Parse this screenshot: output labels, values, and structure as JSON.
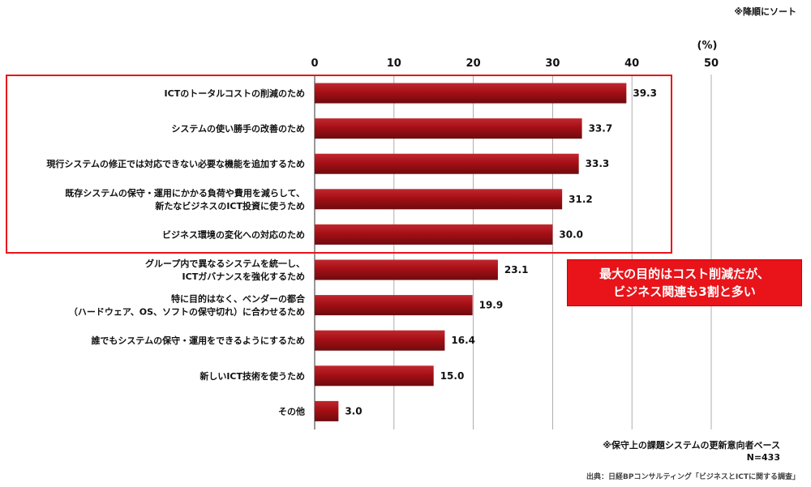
{
  "notes": {
    "sort": "※降順にソート",
    "base_line1": "※保守上の課題システムの更新意向者ベース",
    "base_line2": "N=433",
    "source": "出典：日経BPコンサルティング「ビジネスとICTに関する調査」"
  },
  "callout": {
    "line1": "最大の目的はコスト削減だが、",
    "line2": "ビジネス関連も3割と多い"
  },
  "colors": {
    "bar": "#a50f15",
    "bar_dark": "#6e0b0e",
    "bar_light": "#c0282e",
    "accent": "#e8141a"
  },
  "chart_data": {
    "type": "bar",
    "orientation": "horizontal",
    "unit_label": "(%)",
    "xlim": [
      0,
      50
    ],
    "xticks": [
      0,
      10,
      20,
      30,
      40,
      50
    ],
    "grid": true,
    "categories": [
      [
        "ICTのトータルコストの削減のため"
      ],
      [
        "システムの使い勝手の改善のため"
      ],
      [
        "現行システムの修正では対応できない必要な機能を追加するため"
      ],
      [
        "既存システムの保守・運用にかかる負荷や費用を減らして、",
        "新たなビジネスのICT投資に使うため"
      ],
      [
        "ビジネス環境の変化への対応のため"
      ],
      [
        "グループ内で異なるシステムを統一し、",
        "ICTガバナンスを強化するため"
      ],
      [
        "特に目的はなく、ベンダーの都合",
        "（ハードウェア、OS、ソフトの保守切れ）に合わせるため"
      ],
      [
        "誰でもシステムの保守・運用をできるようにするため"
      ],
      [
        "新しいICT技術を使うため"
      ],
      [
        "その他"
      ]
    ],
    "values": [
      39.3,
      33.7,
      33.3,
      31.2,
      30.0,
      23.1,
      19.9,
      16.4,
      15.0,
      3.0
    ],
    "value_labels": [
      "39.3",
      "33.7",
      "33.3",
      "31.2",
      "30.0",
      "23.1",
      "19.9",
      "16.4",
      "15.0",
      "3.0"
    ]
  }
}
